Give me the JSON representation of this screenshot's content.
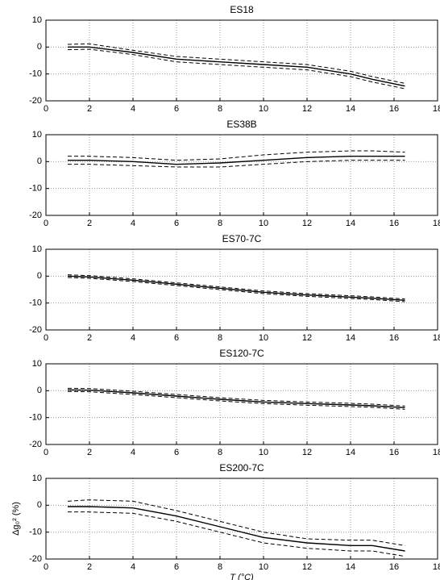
{
  "chart_data": [
    {
      "type": "line",
      "title": "ES18",
      "xlim": [
        0,
        18
      ],
      "ylim": [
        -20,
        10
      ],
      "xticks": [
        0,
        2,
        4,
        6,
        8,
        10,
        12,
        14,
        16,
        18
      ],
      "yticks": [
        -20,
        -10,
        0,
        10
      ],
      "grid": true,
      "x": [
        1,
        2,
        4,
        6,
        8,
        10,
        12,
        14,
        15,
        16.5
      ],
      "series": [
        {
          "color": "#000000",
          "style": "solid",
          "values": [
            0,
            0,
            -2,
            -4.5,
            -5.5,
            -6.5,
            -7.5,
            -10,
            -12,
            -14.5
          ]
        },
        {
          "color": "#000000",
          "style": "dashed",
          "values": [
            1,
            1.2,
            -1.2,
            -3.5,
            -4.5,
            -5.5,
            -6.5,
            -9,
            -11,
            -13.5
          ]
        },
        {
          "color": "#000000",
          "style": "dashed",
          "values": [
            -1,
            -0.8,
            -2.8,
            -5.5,
            -6.5,
            -7.5,
            -8.5,
            -11,
            -13,
            -15.5
          ]
        }
      ]
    },
    {
      "type": "line",
      "title": "ES38B",
      "xlim": [
        0,
        18
      ],
      "ylim": [
        -20,
        10
      ],
      "xticks": [
        0,
        2,
        4,
        6,
        8,
        10,
        12,
        14,
        16,
        18
      ],
      "yticks": [
        -20,
        -10,
        0,
        10
      ],
      "grid": true,
      "x": [
        1,
        2,
        4,
        6,
        8,
        10,
        12,
        14,
        15,
        16.5
      ],
      "series": [
        {
          "color": "#000000",
          "style": "solid",
          "values": [
            0.5,
            0.5,
            0,
            -1,
            -0.5,
            0.5,
            1.5,
            2,
            2,
            2
          ]
        },
        {
          "color": "#000000",
          "style": "dashed",
          "values": [
            2,
            2,
            1.5,
            0.5,
            1,
            2.5,
            3.5,
            4,
            4,
            3.5
          ]
        },
        {
          "color": "#000000",
          "style": "dashed",
          "values": [
            -1,
            -1,
            -1.5,
            -2,
            -2,
            -1,
            0,
            0.5,
            0.5,
            0.5
          ]
        }
      ]
    },
    {
      "type": "line",
      "title": "ES70-7C",
      "xlim": [
        0,
        18
      ],
      "ylim": [
        -20,
        10
      ],
      "xticks": [
        0,
        2,
        4,
        6,
        8,
        10,
        12,
        14,
        16,
        18
      ],
      "yticks": [
        -20,
        -10,
        0,
        10
      ],
      "grid": true,
      "x": [
        1,
        2,
        4,
        6,
        8,
        10,
        12,
        14,
        15,
        16.5
      ],
      "series": [
        {
          "color": "#000000",
          "style": "solid",
          "values": [
            0,
            -0.3,
            -1.5,
            -3,
            -4.5,
            -6,
            -7,
            -7.8,
            -8.2,
            -9
          ]
        },
        {
          "color": "#000000",
          "style": "dashed",
          "values": [
            0.5,
            0.2,
            -1,
            -2.5,
            -4,
            -5.5,
            -6.5,
            -7.3,
            -7.7,
            -8.5
          ]
        },
        {
          "color": "#000000",
          "style": "dashed",
          "values": [
            -0.5,
            -0.8,
            -2,
            -3.5,
            -5,
            -6.5,
            -7.5,
            -8.3,
            -8.7,
            -9.5
          ]
        }
      ]
    },
    {
      "type": "line",
      "title": "ES120-7C",
      "xlim": [
        0,
        18
      ],
      "ylim": [
        -20,
        10
      ],
      "xticks": [
        0,
        2,
        4,
        6,
        8,
        10,
        12,
        14,
        16,
        18
      ],
      "yticks": [
        -20,
        -10,
        0,
        10
      ],
      "grid": true,
      "x": [
        1,
        2,
        4,
        6,
        8,
        10,
        12,
        14,
        15,
        16.5
      ],
      "series": [
        {
          "color": "#000000",
          "style": "solid",
          "values": [
            0.3,
            0.2,
            -0.8,
            -2,
            -3.2,
            -4.2,
            -4.8,
            -5.3,
            -5.6,
            -6.3
          ]
        },
        {
          "color": "#000000",
          "style": "dashed",
          "values": [
            0.9,
            0.8,
            -0.2,
            -1.4,
            -2.6,
            -3.6,
            -4.2,
            -4.7,
            -5,
            -5.7
          ]
        },
        {
          "color": "#000000",
          "style": "dashed",
          "values": [
            -0.3,
            -0.4,
            -1.4,
            -2.6,
            -3.8,
            -4.8,
            -5.4,
            -5.9,
            -6.2,
            -6.9
          ]
        }
      ]
    },
    {
      "type": "line",
      "title": "ES200-7C",
      "x_label": "T (°C)",
      "y_label": "Δg₀² (%)",
      "xlim": [
        0,
        18
      ],
      "ylim": [
        -20,
        10
      ],
      "xticks": [
        0,
        2,
        4,
        6,
        8,
        10,
        12,
        14,
        16,
        18
      ],
      "yticks": [
        -20,
        -10,
        0,
        10
      ],
      "grid": true,
      "x": [
        1,
        2,
        4,
        6,
        8,
        10,
        12,
        14,
        15,
        16.5
      ],
      "series": [
        {
          "color": "#000000",
          "style": "solid",
          "values": [
            -0.5,
            -0.5,
            -1,
            -4,
            -8,
            -12,
            -14,
            -15,
            -15,
            -17
          ]
        },
        {
          "color": "#000000",
          "style": "dashed",
          "values": [
            1.5,
            2,
            1.5,
            -2,
            -6,
            -10,
            -12.5,
            -13,
            -13,
            -15
          ]
        },
        {
          "color": "#000000",
          "style": "dashed",
          "values": [
            -2.5,
            -2.5,
            -3,
            -6,
            -10,
            -14,
            -16,
            -17,
            -17,
            -19
          ]
        }
      ]
    }
  ]
}
